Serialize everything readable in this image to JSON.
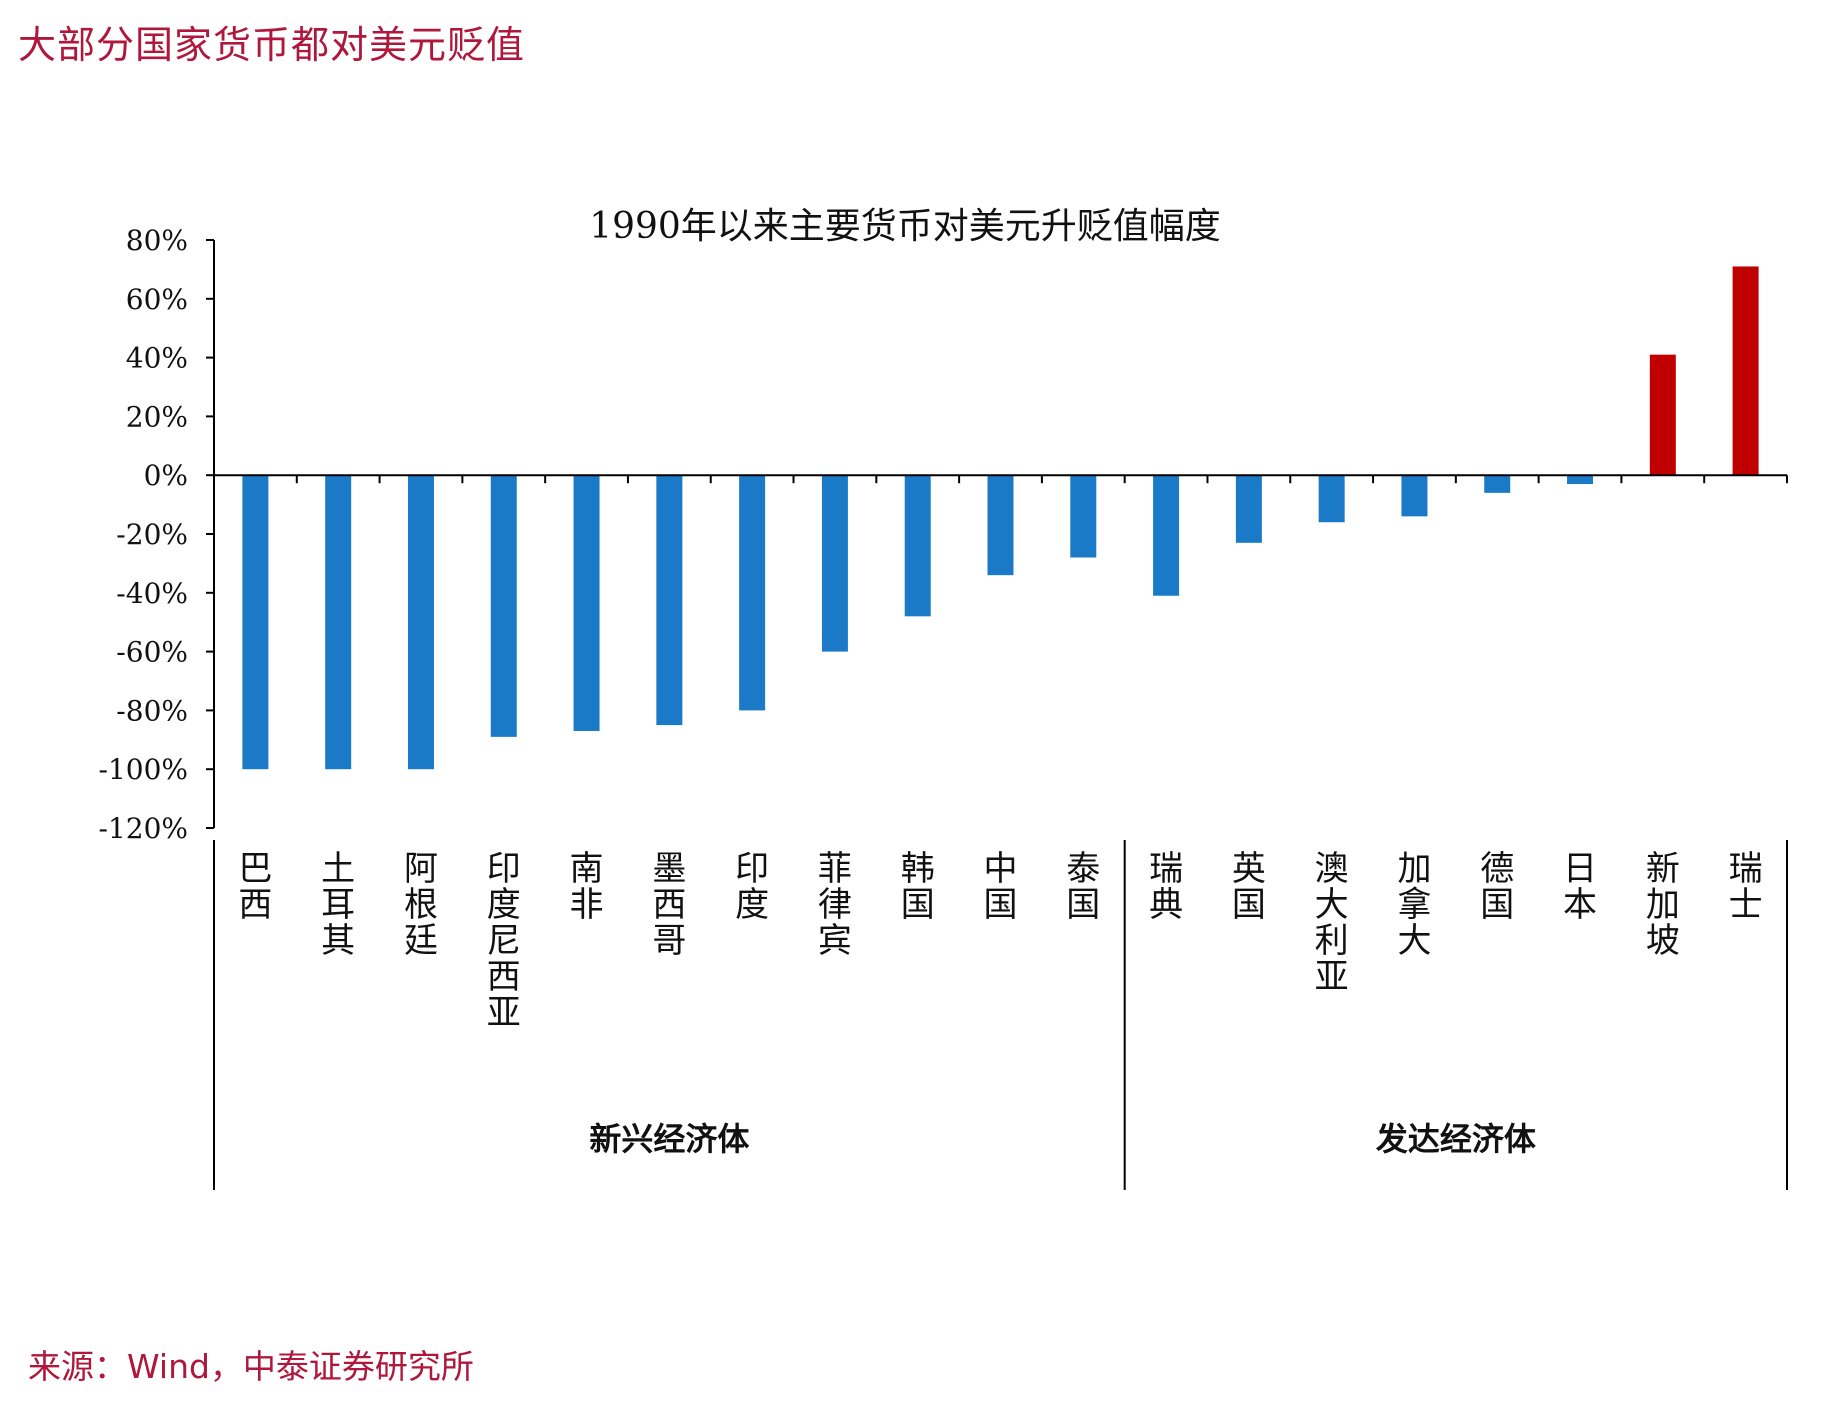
{
  "heading": "大部分国家货币都对美元贬值",
  "source": "来源：Wind，中泰证券研究所",
  "colors": {
    "negative": "#1a7ac7",
    "positive": "#c00000",
    "heading": "#b0173c"
  },
  "chart_data": {
    "type": "bar",
    "title": "1990年以来主要货币对美元升贬值幅度",
    "xlabel": "",
    "ylabel": "",
    "ylim": [
      -120,
      80
    ],
    "yticks": [
      80,
      60,
      40,
      20,
      0,
      -20,
      -40,
      -60,
      -80,
      -100,
      -120
    ],
    "ytick_labels": [
      "80%",
      "60%",
      "40%",
      "20%",
      "0%",
      "-20%",
      "-40%",
      "-60%",
      "-80%",
      "-100%",
      "-120%"
    ],
    "grid": false,
    "legend": "none",
    "categories": [
      "巴西",
      "土耳其",
      "阿根廷",
      "印度尼西亚",
      "南非",
      "墨西哥",
      "印度",
      "菲律宾",
      "韩国",
      "中国",
      "泰国",
      "瑞典",
      "英国",
      "澳大利亚",
      "加拿大",
      "德国",
      "日本",
      "新加坡",
      "瑞士"
    ],
    "values": [
      -100,
      -100,
      -100,
      -89,
      -87,
      -85,
      -80,
      -60,
      -48,
      -34,
      -28,
      -41,
      -23,
      -16,
      -14,
      -6,
      -3,
      41,
      71
    ],
    "groups": [
      {
        "label": "新兴经济体",
        "count": 11
      },
      {
        "label": "发达经济体",
        "count": 8
      }
    ]
  }
}
